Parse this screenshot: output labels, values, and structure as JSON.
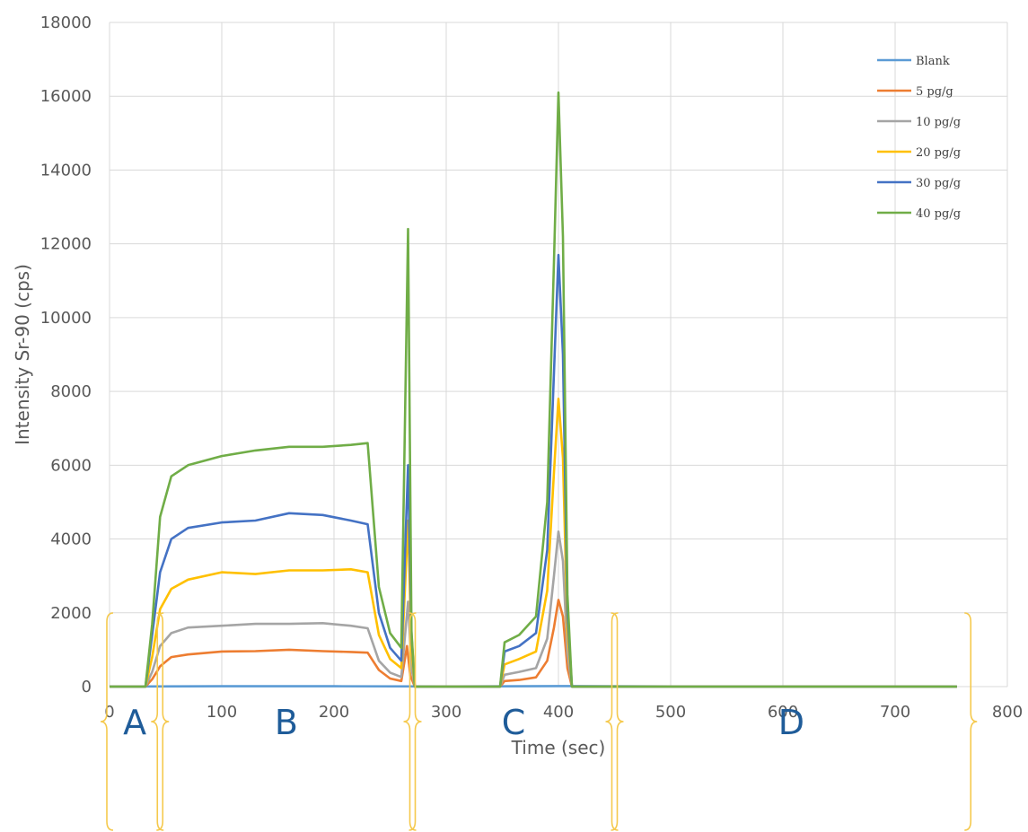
{
  "chart_data": {
    "type": "line",
    "title": "",
    "xlabel": "Time (sec)",
    "ylabel": "Intensity Sr-90 (cps)",
    "xlim": [
      0,
      800
    ],
    "ylim": [
      0,
      18000
    ],
    "xticks": [
      0,
      100,
      200,
      300,
      400,
      500,
      600,
      700,
      800
    ],
    "yticks": [
      0,
      2000,
      4000,
      6000,
      8000,
      10000,
      12000,
      14000,
      16000,
      18000
    ],
    "grid": true,
    "legend_position": "top-right",
    "series": [
      {
        "name": "Blank",
        "color": "#5b9bd5",
        "points": [
          [
            0,
            0
          ],
          [
            100,
            10
          ],
          [
            200,
            10
          ],
          [
            300,
            5
          ],
          [
            400,
            15
          ],
          [
            500,
            5
          ],
          [
            600,
            5
          ],
          [
            700,
            5
          ],
          [
            755,
            0
          ]
        ]
      },
      {
        "name": "5 pg/g",
        "color": "#ed7d31",
        "points": [
          [
            0,
            0
          ],
          [
            32,
            0
          ],
          [
            38,
            200
          ],
          [
            45,
            550
          ],
          [
            55,
            800
          ],
          [
            70,
            870
          ],
          [
            100,
            950
          ],
          [
            130,
            960
          ],
          [
            160,
            1000
          ],
          [
            190,
            960
          ],
          [
            215,
            940
          ],
          [
            230,
            920
          ],
          [
            240,
            450
          ],
          [
            250,
            220
          ],
          [
            260,
            150
          ],
          [
            265,
            1100
          ],
          [
            268,
            300
          ],
          [
            272,
            0
          ],
          [
            348,
            0
          ],
          [
            352,
            150
          ],
          [
            365,
            180
          ],
          [
            380,
            250
          ],
          [
            390,
            700
          ],
          [
            396,
            1600
          ],
          [
            400,
            2350
          ],
          [
            404,
            1900
          ],
          [
            408,
            500
          ],
          [
            412,
            0
          ],
          [
            755,
            0
          ]
        ]
      },
      {
        "name": "10 pg/g",
        "color": "#a5a5a5",
        "points": [
          [
            0,
            0
          ],
          [
            32,
            0
          ],
          [
            38,
            400
          ],
          [
            45,
            1100
          ],
          [
            55,
            1450
          ],
          [
            70,
            1600
          ],
          [
            100,
            1650
          ],
          [
            130,
            1700
          ],
          [
            160,
            1700
          ],
          [
            190,
            1720
          ],
          [
            215,
            1650
          ],
          [
            230,
            1580
          ],
          [
            240,
            700
          ],
          [
            250,
            380
          ],
          [
            260,
            260
          ],
          [
            266,
            2300
          ],
          [
            269,
            500
          ],
          [
            272,
            0
          ],
          [
            348,
            0
          ],
          [
            352,
            320
          ],
          [
            365,
            400
          ],
          [
            380,
            500
          ],
          [
            390,
            1300
          ],
          [
            396,
            3000
          ],
          [
            400,
            4200
          ],
          [
            404,
            3400
          ],
          [
            408,
            900
          ],
          [
            412,
            0
          ],
          [
            755,
            0
          ]
        ]
      },
      {
        "name": "20 pg/g",
        "color": "#ffc000",
        "points": [
          [
            0,
            0
          ],
          [
            32,
            0
          ],
          [
            38,
            800
          ],
          [
            45,
            2100
          ],
          [
            55,
            2650
          ],
          [
            70,
            2900
          ],
          [
            100,
            3100
          ],
          [
            130,
            3050
          ],
          [
            160,
            3150
          ],
          [
            190,
            3150
          ],
          [
            215,
            3180
          ],
          [
            230,
            3100
          ],
          [
            240,
            1400
          ],
          [
            250,
            750
          ],
          [
            260,
            500
          ],
          [
            266,
            4500
          ],
          [
            269,
            1000
          ],
          [
            272,
            0
          ],
          [
            348,
            0
          ],
          [
            352,
            600
          ],
          [
            365,
            750
          ],
          [
            380,
            950
          ],
          [
            390,
            2600
          ],
          [
            396,
            5800
          ],
          [
            400,
            7800
          ],
          [
            404,
            6200
          ],
          [
            408,
            1500
          ],
          [
            412,
            0
          ],
          [
            755,
            0
          ]
        ]
      },
      {
        "name": "30 pg/g",
        "color": "#4472c4",
        "points": [
          [
            0,
            0
          ],
          [
            32,
            0
          ],
          [
            38,
            1400
          ],
          [
            45,
            3100
          ],
          [
            55,
            4000
          ],
          [
            70,
            4300
          ],
          [
            100,
            4450
          ],
          [
            130,
            4500
          ],
          [
            160,
            4700
          ],
          [
            190,
            4650
          ],
          [
            215,
            4500
          ],
          [
            230,
            4400
          ],
          [
            240,
            2000
          ],
          [
            250,
            1050
          ],
          [
            260,
            700
          ],
          [
            266,
            6000
          ],
          [
            269,
            1400
          ],
          [
            272,
            0
          ],
          [
            348,
            0
          ],
          [
            352,
            950
          ],
          [
            365,
            1100
          ],
          [
            380,
            1450
          ],
          [
            390,
            3700
          ],
          [
            396,
            8500
          ],
          [
            400,
            11700
          ],
          [
            404,
            9000
          ],
          [
            408,
            2000
          ],
          [
            412,
            0
          ],
          [
            755,
            0
          ]
        ]
      },
      {
        "name": "40 pg/g",
        "color": "#70ad47",
        "points": [
          [
            0,
            0
          ],
          [
            32,
            0
          ],
          [
            38,
            1700
          ],
          [
            45,
            4600
          ],
          [
            55,
            5700
          ],
          [
            70,
            6000
          ],
          [
            100,
            6250
          ],
          [
            130,
            6400
          ],
          [
            160,
            6500
          ],
          [
            190,
            6500
          ],
          [
            215,
            6550
          ],
          [
            230,
            6600
          ],
          [
            240,
            2700
          ],
          [
            250,
            1450
          ],
          [
            260,
            1050
          ],
          [
            266,
            12400
          ],
          [
            269,
            1500
          ],
          [
            272,
            0
          ],
          [
            348,
            0
          ],
          [
            352,
            1200
          ],
          [
            365,
            1400
          ],
          [
            380,
            1900
          ],
          [
            390,
            5000
          ],
          [
            396,
            11500
          ],
          [
            400,
            16100
          ],
          [
            404,
            12200
          ],
          [
            408,
            2500
          ],
          [
            412,
            0
          ],
          [
            755,
            0
          ]
        ]
      }
    ],
    "annotations": [
      {
        "text": "A",
        "x_start": 0,
        "x_end": 45
      },
      {
        "text": "B",
        "x_start": 45,
        "x_end": 270
      },
      {
        "text": "C",
        "x_start": 270,
        "x_end": 450
      },
      {
        "text": "D",
        "x_start": 450,
        "x_end": 765
      }
    ],
    "bracket_color": "#f5c94d"
  }
}
